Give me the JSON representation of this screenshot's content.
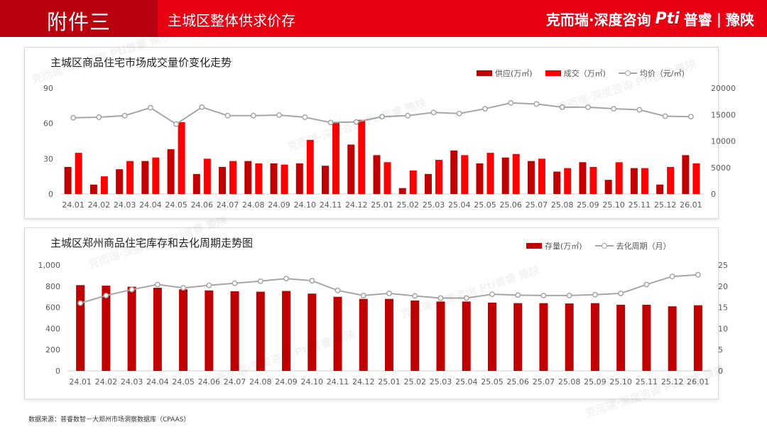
{
  "header": {
    "tab_label": "附件三",
    "title": "主城区整体供求价存",
    "brand_left": "克而瑞·深度咨询",
    "brand_pt": "Pti",
    "brand_mid": "普睿",
    "brand_right": "豫陕"
  },
  "watermark": "克而瑞·深度咨询 Pti普睿 豫陕",
  "colors": {
    "header_bg": "#e60012",
    "tab_bg": "#b8000e",
    "supply": "#c00000",
    "deal": "#ff0000",
    "line": "#a6a6a6"
  },
  "chart1": {
    "title": "主城区商品住宅市场成交量价变化走势",
    "legend": {
      "supply": "供应(万㎡)",
      "deal": "成交（万㎡)",
      "price": "均价（元/㎡)"
    }
  },
  "chart2": {
    "title": "主城区郑州商品住宅库存和去化周期走势图",
    "legend": {
      "stock": "存量(万㎡)",
      "cycle": "去化周期（月）"
    }
  },
  "source": "数据来源：普睿数智－大郑州市场洞察数据库（CPAAS）",
  "chart_data": [
    {
      "type": "bar",
      "title": "主城区商品住宅市场成交量价变化走势",
      "categories": [
        "24.01",
        "24.02",
        "24.03",
        "24.04",
        "24.05",
        "24.06",
        "24.07",
        "24.08",
        "24.09",
        "24.10",
        "24.11",
        "24.12",
        "25.01",
        "25.02",
        "25.03",
        "25.04",
        "25.05",
        "25.06",
        "25.07",
        "25.08",
        "25.09",
        "25.10",
        "25.11",
        "25.12",
        "26.01"
      ],
      "series": [
        {
          "name": "供应(万㎡)",
          "axis": "left",
          "kind": "bar",
          "values": [
            23,
            8,
            21,
            28,
            38,
            17,
            23,
            28,
            26,
            26,
            24,
            42,
            33,
            5,
            17,
            37,
            26,
            31,
            28,
            19,
            27,
            12,
            22,
            8,
            33
          ]
        },
        {
          "name": "成交（万㎡)",
          "axis": "left",
          "kind": "bar",
          "values": [
            35,
            15,
            28,
            31,
            61,
            30,
            28,
            26,
            25,
            46,
            61,
            63,
            27,
            20,
            29,
            33,
            35,
            34,
            30,
            22,
            23,
            27,
            22,
            23,
            26
          ]
        },
        {
          "name": "均价（元/㎡)",
          "axis": "right",
          "kind": "line",
          "values": [
            14400,
            14500,
            14800,
            16300,
            13200,
            16400,
            14800,
            14800,
            14900,
            14500,
            13500,
            13600,
            14600,
            14800,
            15400,
            15200,
            16100,
            17200,
            17000,
            16400,
            16400,
            16100,
            15900,
            14700,
            14600
          ]
        }
      ],
      "ylim": [
        0,
        90
      ],
      "yticks": [
        0,
        30,
        60,
        90
      ],
      "y2lim": [
        0,
        20000
      ],
      "y2ticks": [
        0,
        5000,
        10000,
        15000,
        20000
      ],
      "legend_position": "top-right"
    },
    {
      "type": "bar",
      "title": "主城区郑州商品住宅库存和去化周期走势图",
      "categories": [
        "24.01",
        "24.02",
        "24.03",
        "24.04",
        "24.05",
        "24.06",
        "24.07",
        "24.08",
        "24.09",
        "24.10",
        "24.11",
        "24.12",
        "25.01",
        "25.02",
        "25.03",
        "25.04",
        "25.05",
        "25.06",
        "25.07",
        "25.08",
        "25.09",
        "25.10",
        "25.11",
        "25.12",
        "26.01"
      ],
      "series": [
        {
          "name": "存量(万㎡)",
          "axis": "left",
          "kind": "bar",
          "values": [
            810,
            805,
            795,
            785,
            770,
            760,
            752,
            748,
            755,
            730,
            700,
            680,
            680,
            665,
            655,
            655,
            645,
            640,
            640,
            637,
            640,
            625,
            625,
            610,
            620
          ]
        },
        {
          "name": "去化周期（月）",
          "axis": "right",
          "kind": "line",
          "values": [
            16,
            17.8,
            19.2,
            20.4,
            19.6,
            20.2,
            20.7,
            21.2,
            21.8,
            21.3,
            19,
            17.8,
            18.3,
            17.7,
            17.2,
            17.2,
            18.1,
            17.9,
            17.8,
            17.8,
            18,
            18.3,
            20.4,
            22.3,
            22.7
          ]
        }
      ],
      "ylim": [
        0,
        1000
      ],
      "yticks": [
        "0",
        "200",
        "400",
        "600",
        "800",
        "1,000"
      ],
      "y2lim": [
        0,
        25
      ],
      "y2ticks": [
        0,
        5,
        10,
        15,
        20,
        25
      ],
      "legend_position": "top-right"
    }
  ]
}
